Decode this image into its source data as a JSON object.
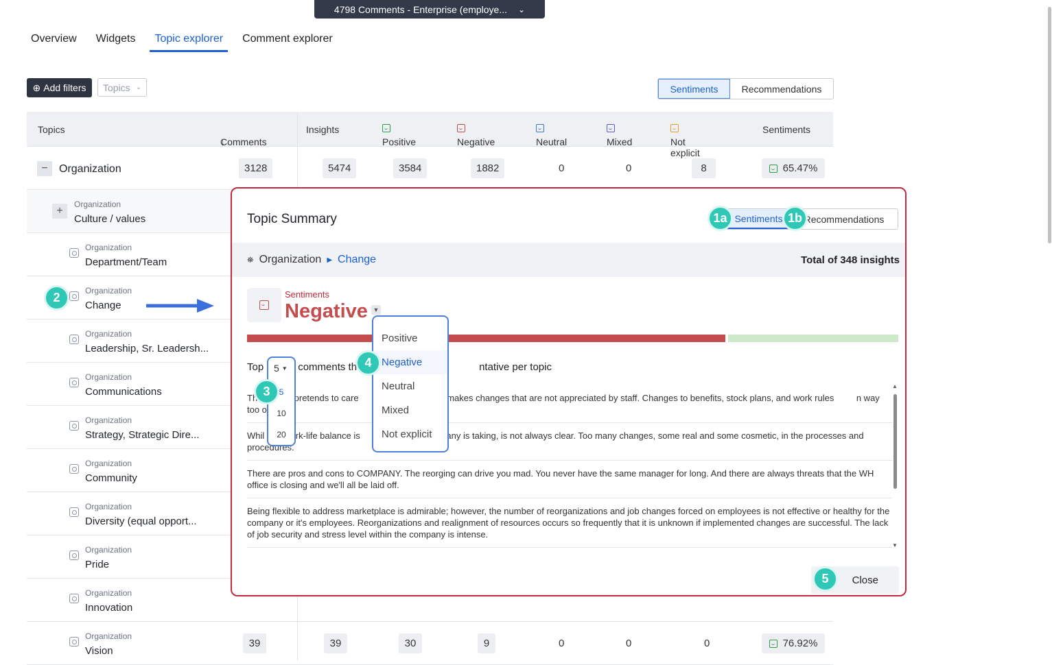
{
  "dataset": {
    "label": "4798 Comments - Enterprise (employe..."
  },
  "tabs": [
    {
      "label": "Overview"
    },
    {
      "label": "Widgets"
    },
    {
      "label": "Topic explorer"
    },
    {
      "label": "Comment explorer"
    }
  ],
  "toolbar": {
    "add_filters": "Add filters",
    "topics_select": "Topics",
    "sentiments": "Sentiments",
    "recommendations": "Recommendations"
  },
  "table": {
    "headers": {
      "topics": "Topics",
      "comments": "Comments",
      "insights": "Insights",
      "positive": "Positive",
      "negative": "Negative",
      "neutral": "Neutral",
      "mixed": "Mixed",
      "not_explicit": "Not explicit",
      "sentiments": "Sentiments"
    },
    "parent": {
      "name": "Organization",
      "comments": "3128",
      "insights": "5474",
      "positive": "3584",
      "negative": "1882",
      "neutral": "0",
      "mixed": "0",
      "not_explicit": "8",
      "sentiment": "65.47%"
    },
    "rows": [
      {
        "category": "Organization",
        "name": "Culture / values"
      },
      {
        "category": "Organization",
        "name": "Department/Team"
      },
      {
        "category": "Organization",
        "name": "Change"
      },
      {
        "category": "Organization",
        "name": "Leadership, Sr. Leadersh..."
      },
      {
        "category": "Organization",
        "name": "Communications"
      },
      {
        "category": "Organization",
        "name": "Strategy, Strategic Dire..."
      },
      {
        "category": "Organization",
        "name": "Community"
      },
      {
        "category": "Organization",
        "name": "Diversity (equal opport..."
      },
      {
        "category": "Organization",
        "name": "Pride"
      },
      {
        "category": "Organization",
        "name": "Innovation"
      },
      {
        "category": "Organization",
        "name": "Vision",
        "comments": "39",
        "insights": "39",
        "positive": "30",
        "negative": "9",
        "neutral": "0",
        "mixed": "0",
        "not_explicit": "0",
        "sentiment": "76.92%"
      }
    ]
  },
  "modal": {
    "title": "Topic Summary",
    "seg_sentiments": "Sentiments",
    "seg_recommendations": "Recommendations",
    "crumb_root": "Organization",
    "crumb_current": "Change",
    "total": "Total of 348 insights",
    "sentiment_label": "Sentiments",
    "sentiment_value": "Negative",
    "top_prefix": "Top",
    "top_value": "5",
    "top_middle": "comments th",
    "top_suffix": "ntative per topic",
    "comments": [
      "Th          ny pretends to care            yet repeatedly makes changes that are not appreciated by staff. Changes to benefits, stock plans, and work rules         n way too often.",
      "Whil        work-life balance is                 n the company is taking, is not always clear. Too many changes, some real and some cosmetic, in the processes and procedures.",
      "There are pros and cons to COMPANY. The reorging can drive you mad. You never have the same manager for long. And there are always threats that the WH office is closing and we'll all be laid off.",
      "Being flexible to address marketplace is admirable; however, the number of reorganizations and job changes forced on employees is not effective or healthy for the company or it's employees. Reorganizations and realignment of resources occurs so frequently that it is unknown if implemented changes are successful. The lack of job security and stress level within the company is intense."
    ],
    "close": "Close"
  },
  "sentiment_dropdown": [
    "Positive",
    "Negative",
    "Neutral",
    "Mixed",
    "Not explicit"
  ],
  "top_dropdown": {
    "current": "5",
    "options": [
      "5",
      "10",
      "20"
    ]
  },
  "badges": {
    "b1a": "1a",
    "b1b": "1b",
    "b2": "2",
    "b3": "3",
    "b4": "4",
    "b5": "5"
  },
  "colors": {
    "accent": "#1b5fd1",
    "negative": "#c44c4c",
    "badge": "#2fc8b7",
    "modal_border": "#c5283d"
  }
}
